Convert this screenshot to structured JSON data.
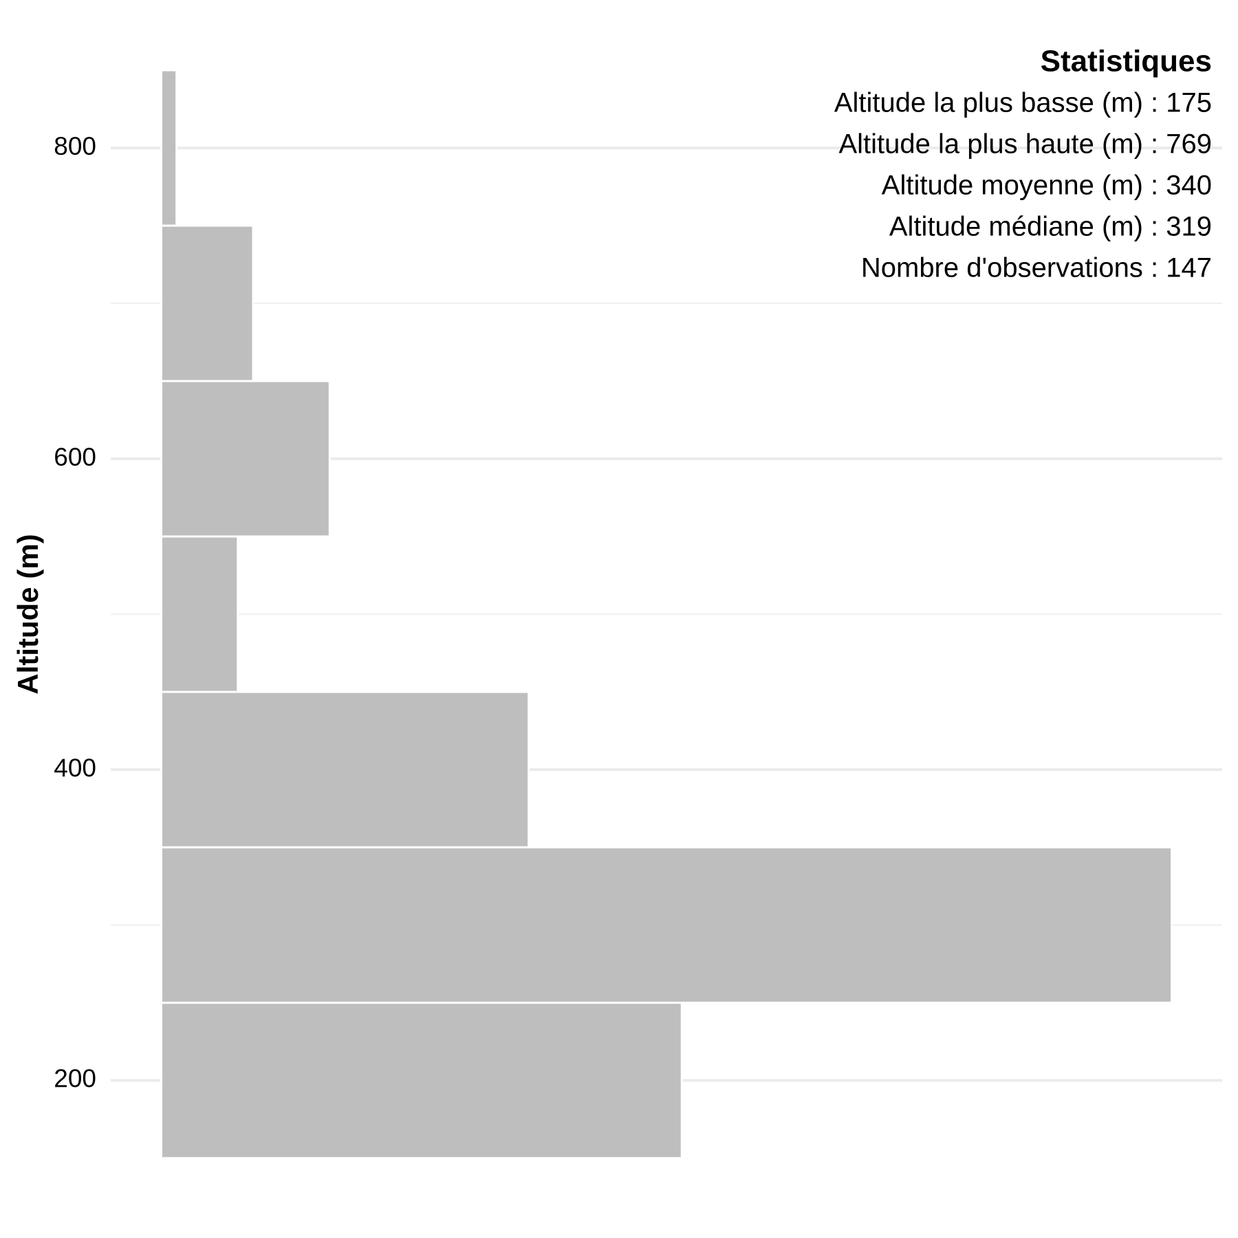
{
  "chart_data": {
    "type": "histogram",
    "orientation": "horizontal",
    "y_label": "Altitude (m)",
    "bins": [
      150,
      250,
      350,
      450,
      550,
      650,
      750,
      850
    ],
    "counts": [
      34,
      66,
      24,
      5,
      11,
      6,
      1
    ],
    "color": "#bebebe",
    "ylim": [
      115,
      885
    ],
    "yticks": [
      200,
      400,
      600,
      800
    ],
    "y_minor_ticks": [
      300,
      500,
      700
    ],
    "xlim": [
      -3.3,
      69.3
    ],
    "grid": true,
    "stats": {
      "title": "Statistiques",
      "lines": [
        "Altitude la plus basse (m) : 175",
        "Altitude la plus haute (m) : 769",
        "Altitude moyenne (m) : 340",
        "Altitude médiane (m) : 319",
        "Nombre d'observations : 147"
      ]
    }
  }
}
